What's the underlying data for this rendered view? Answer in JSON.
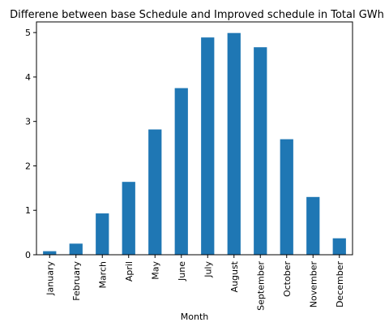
{
  "chart_data": {
    "type": "bar",
    "title": "Differene between base Schedule and Improved schedule in Total GWh",
    "xlabel": "Month",
    "ylabel": "",
    "categories": [
      "January",
      "February",
      "March",
      "April",
      "May",
      "June",
      "July",
      "August",
      "September",
      "October",
      "November",
      "December"
    ],
    "values": [
      0.08,
      0.25,
      0.93,
      1.64,
      2.82,
      3.75,
      4.89,
      4.99,
      4.67,
      2.6,
      1.3,
      0.37
    ],
    "ylim": [
      0,
      5.24
    ],
    "yticks": [
      "0",
      "1",
      "2",
      "3",
      "4",
      "5"
    ],
    "grid": false,
    "legend": "none",
    "bar_color": "#1f77b4"
  }
}
